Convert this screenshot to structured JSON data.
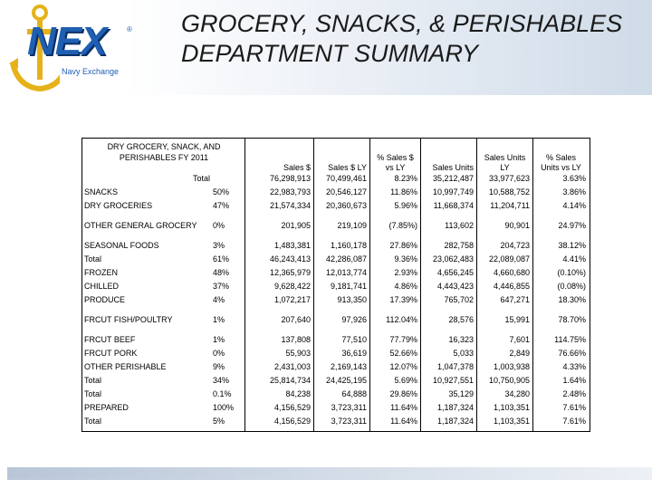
{
  "logo": {
    "wordmark": "NEX",
    "registered": "®",
    "tagline": "Navy Exchange"
  },
  "title": {
    "line1": "GROCERY, SNACKS, & PERISHABLES",
    "line2": "DEPARTMENT SUMMARY"
  },
  "table": {
    "heading": [
      "DRY GROCERY, SNACK, AND",
      "PERISHABLES FY 2011"
    ],
    "columns": [
      "Sales $",
      "Sales $ LY",
      "% Sales $ vs LY",
      "Sales Units",
      "Sales Units LY",
      "% Sales Units vs LY"
    ],
    "column_lines": [
      [
        [
          "Sales $"
        ]
      ],
      [
        [
          "Sales $ LY"
        ]
      ],
      [
        [
          "% Sales $",
          "vs LY"
        ]
      ],
      [
        [
          "Sales Units"
        ]
      ],
      [
        [
          "Sales Units",
          "LY"
        ]
      ],
      [
        [
          "% Sales",
          "Units vs LY"
        ]
      ]
    ],
    "rows": [
      {
        "label": "Total",
        "pct": "",
        "cells": [
          "76,298,913",
          "70,499,461",
          "8.23%",
          "35,212,487",
          "33,977,623",
          "3.63%"
        ]
      },
      {
        "label": "SNACKS",
        "pct": "50%",
        "cells": [
          "22,983,793",
          "20,546,127",
          "11.86%",
          "10,997,749",
          "10,588,752",
          "3.86%"
        ]
      },
      {
        "label": "DRY GROCERIES",
        "pct": "47%",
        "cells": [
          "21,574,334",
          "20,360,673",
          "5.96%",
          "11,668,374",
          "11,204,711",
          "4.14%"
        ]
      },
      {
        "label": "OTHER GENERAL GROCERY",
        "pct": "0%",
        "cells": [
          "201,905",
          "219,109",
          "(7.85%)",
          "113,602",
          "90,901",
          "24.97%"
        ]
      },
      {
        "label": "SEASONAL FOODS",
        "pct": "3%",
        "cells": [
          "1,483,381",
          "1,160,178",
          "27.86%",
          "282,758",
          "204,723",
          "38.12%"
        ]
      },
      {
        "label": "Total",
        "pct": "61%",
        "cells": [
          "46,243,413",
          "42,286,087",
          "9.36%",
          "23,062,483",
          "22,089,087",
          "4.41%"
        ]
      },
      {
        "label": "FROZEN",
        "pct": "48%",
        "cells": [
          "12,365,979",
          "12,013,774",
          "2.93%",
          "4,656,245",
          "4,660,680",
          "(0.10%)"
        ]
      },
      {
        "label": "CHILLED",
        "pct": "37%",
        "cells": [
          "9,628,422",
          "9,181,741",
          "4.86%",
          "4,443,423",
          "4,446,855",
          "(0.08%)"
        ]
      },
      {
        "label": "PRODUCE",
        "pct": "4%",
        "cells": [
          "1,072,217",
          "913,350",
          "17.39%",
          "765,702",
          "647,271",
          "18.30%"
        ]
      },
      {
        "label": "FRCUT FISH/POULTRY",
        "pct": "1%",
        "cells": [
          "207,640",
          "97,926",
          "112.04%",
          "28,576",
          "15,991",
          "78.70%"
        ]
      },
      {
        "label": "FRCUT BEEF",
        "pct": "1%",
        "cells": [
          "137,808",
          "77,510",
          "77.79%",
          "16,323",
          "7,601",
          "114.75%"
        ]
      },
      {
        "label": "FRCUT PORK",
        "pct": "0%",
        "cells": [
          "55,903",
          "36,619",
          "52.66%",
          "5,033",
          "2,849",
          "76.66%"
        ]
      },
      {
        "label": "OTHER PERISHABLE",
        "pct": "9%",
        "cells": [
          "2,431,003",
          "2,169,143",
          "12.07%",
          "1,047,378",
          "1,003,938",
          "4.33%"
        ]
      },
      {
        "label": "Total",
        "pct": "34%",
        "cells": [
          "25,814,734",
          "24,425,195",
          "5.69%",
          "10,927,551",
          "10,750,905",
          "1.64%"
        ]
      },
      {
        "label": "Total",
        "pct": "0.1%",
        "cells": [
          "84,238",
          "64,888",
          "29.86%",
          "35,129",
          "34,280",
          "2.48%"
        ]
      },
      {
        "label": "PREPARED",
        "pct": "100%",
        "cells": [
          "4,156,529",
          "3,723,311",
          "11.64%",
          "1,187,324",
          "1,103,351",
          "7.61%"
        ]
      },
      {
        "label": "Total",
        "pct": "5%",
        "cells": [
          "4,156,529",
          "3,723,311",
          "11.64%",
          "1,187,324",
          "1,103,351",
          "7.61%"
        ]
      }
    ]
  }
}
